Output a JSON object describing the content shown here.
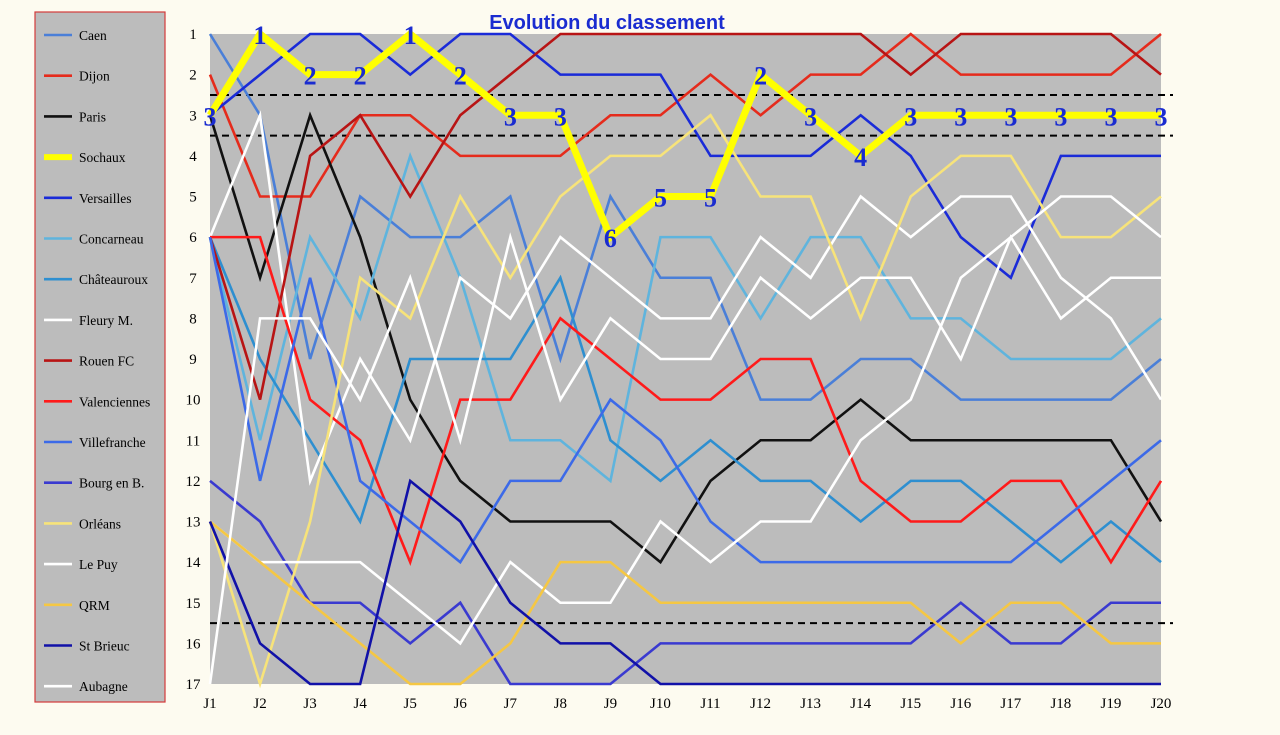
{
  "chart_data": {
    "type": "line",
    "title": "Evolution du classement",
    "x": [
      "J1",
      "J2",
      "J3",
      "J4",
      "J5",
      "J6",
      "J7",
      "J8",
      "J9",
      "J10",
      "J11",
      "J12",
      "J13",
      "J14",
      "J15",
      "J16",
      "J17",
      "J18",
      "J19",
      "J20"
    ],
    "y_ticks": [
      1,
      2,
      3,
      4,
      5,
      6,
      7,
      8,
      9,
      10,
      11,
      12,
      13,
      14,
      15,
      16,
      17
    ],
    "ylim": [
      1,
      17
    ],
    "y_inverted": true,
    "reference_lines": [
      2.5,
      3.5,
      15.5
    ],
    "legend_position": "left",
    "highlight_series": "Sochaux",
    "highlight_labels": [
      "3",
      "1",
      "2",
      "2",
      "1",
      "2",
      "3",
      "3",
      "6",
      "5",
      "5",
      "2",
      "3",
      "4",
      "3",
      "3",
      "3",
      "3",
      "3",
      "3"
    ],
    "series": [
      {
        "name": "Caen",
        "color": "#4a7fd8",
        "values": [
          1,
          3,
          9,
          5,
          6,
          6,
          5,
          9,
          5,
          7,
          7,
          10,
          10,
          9,
          9,
          10,
          10,
          10,
          10,
          9
        ]
      },
      {
        "name": "Dijon",
        "color": "#e52b1c",
        "values": [
          2,
          5,
          5,
          3,
          3,
          4,
          4,
          4,
          3,
          3,
          2,
          3,
          2,
          2,
          1,
          2,
          2,
          2,
          2,
          1
        ]
      },
      {
        "name": "Paris",
        "color": "#111111",
        "values": [
          3,
          7,
          3,
          6,
          10,
          12,
          13,
          13,
          13,
          14,
          12,
          11,
          11,
          10,
          11,
          11,
          11,
          11,
          11,
          13
        ]
      },
      {
        "name": "Sochaux",
        "color": "#ffff00",
        "values": [
          3,
          1,
          2,
          2,
          1,
          2,
          3,
          3,
          6,
          5,
          5,
          2,
          3,
          4,
          3,
          3,
          3,
          3,
          3,
          3
        ]
      },
      {
        "name": "Versailles",
        "color": "#1a2bd8",
        "values": [
          3,
          2,
          1,
          1,
          2,
          1,
          1,
          2,
          2,
          2,
          4,
          4,
          4,
          3,
          4,
          6,
          7,
          4,
          4,
          4
        ]
      },
      {
        "name": "Concarneau",
        "color": "#5fb4dd",
        "values": [
          6,
          11,
          6,
          8,
          4,
          7,
          11,
          11,
          12,
          6,
          6,
          8,
          6,
          6,
          8,
          8,
          9,
          9,
          9,
          8
        ]
      },
      {
        "name": "Châteauroux",
        "color": "#2e8fd0",
        "values": [
          6,
          9,
          11,
          13,
          9,
          9,
          9,
          7,
          11,
          12,
          11,
          12,
          12,
          13,
          12,
          12,
          13,
          14,
          13,
          14
        ]
      },
      {
        "name": "Fleury M.",
        "color": "#ffffff",
        "values": [
          6,
          3,
          12,
          9,
          11,
          7,
          8,
          6,
          7,
          8,
          8,
          6,
          7,
          5,
          6,
          5,
          5,
          7,
          8,
          10
        ]
      },
      {
        "name": "Rouen FC",
        "color": "#b81414",
        "values": [
          6,
          10,
          4,
          3,
          5,
          3,
          2,
          1,
          1,
          1,
          1,
          1,
          1,
          1,
          2,
          1,
          1,
          1,
          1,
          2
        ]
      },
      {
        "name": "Valenciennes",
        "color": "#ff1a1a",
        "values": [
          6,
          6,
          10,
          11,
          14,
          10,
          10,
          8,
          9,
          10,
          10,
          9,
          9,
          12,
          13,
          13,
          12,
          12,
          14,
          12
        ]
      },
      {
        "name": "Villefranche",
        "color": "#3c6ae8",
        "values": [
          6,
          12,
          7,
          12,
          13,
          14,
          12,
          12,
          10,
          11,
          13,
          14,
          14,
          14,
          14,
          14,
          14,
          13,
          12,
          11
        ]
      },
      {
        "name": "Bourg en B.",
        "color": "#3a3ad0",
        "values": [
          12,
          13,
          15,
          15,
          16,
          15,
          17,
          17,
          17,
          16,
          16,
          16,
          16,
          16,
          16,
          15,
          16,
          16,
          15,
          15
        ]
      },
      {
        "name": "Orléans",
        "color": "#f7e37a",
        "values": [
          13,
          17,
          13,
          7,
          8,
          5,
          7,
          5,
          4,
          4,
          3,
          5,
          5,
          8,
          5,
          4,
          4,
          6,
          6,
          5
        ]
      },
      {
        "name": "Le Puy",
        "color": "#ffffff",
        "values": [
          13,
          14,
          14,
          14,
          15,
          16,
          14,
          15,
          15,
          13,
          14,
          13,
          13,
          11,
          10,
          7,
          6,
          5,
          5,
          6
        ]
      },
      {
        "name": "QRM",
        "color": "#f5c743",
        "values": [
          13,
          14,
          15,
          16,
          17,
          17,
          16,
          14,
          14,
          15,
          15,
          15,
          15,
          15,
          15,
          16,
          15,
          15,
          16,
          16
        ]
      },
      {
        "name": "St Brieuc",
        "color": "#1111a8",
        "values": [
          13,
          16,
          17,
          17,
          12,
          13,
          15,
          16,
          16,
          17,
          17,
          17,
          17,
          17,
          17,
          17,
          17,
          17,
          17,
          17
        ]
      },
      {
        "name": "Aubagne",
        "color": "#ffffff",
        "values": [
          17,
          8,
          8,
          10,
          7,
          11,
          6,
          10,
          8,
          9,
          9,
          7,
          8,
          7,
          7,
          9,
          6,
          8,
          7,
          7
        ]
      }
    ]
  }
}
